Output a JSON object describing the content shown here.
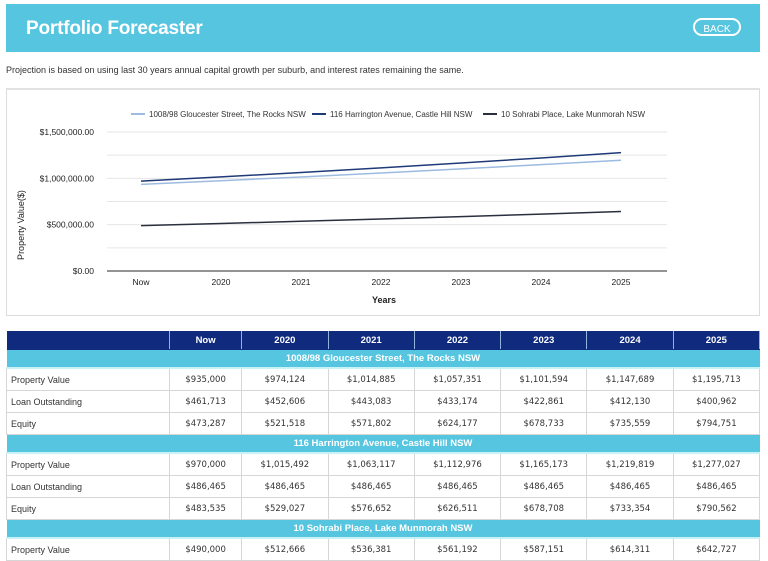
{
  "header": {
    "title": "Portfolio Forecaster",
    "back_label": "BACK"
  },
  "note": "Projection is based on using last 30 years annual capital growth per suburb, and interest rates remaining the same.",
  "colors": {
    "header_bg": "#56c5e0",
    "table_header_bg": "#102a7e",
    "series": [
      "#9dbbe0",
      "#1f3a78",
      "#2a2f3e"
    ]
  },
  "chart_data": {
    "type": "line",
    "title": "",
    "xlabel": "Years",
    "ylabel": "Property Value($)",
    "categories": [
      "Now",
      "2020",
      "2021",
      "2022",
      "2023",
      "2024",
      "2025"
    ],
    "ylim": [
      0,
      1500000
    ],
    "yticks": [
      0,
      500000,
      1000000,
      1500000
    ],
    "ytick_labels": [
      "$0.00",
      "$500,000.00",
      "$1,000,000.00",
      "$1,500,000.00"
    ],
    "grid": true,
    "legend_position": "top",
    "series": [
      {
        "name": "1008/98 Gloucester Street, The Rocks NSW",
        "values": [
          935000,
          974124,
          1014885,
          1057351,
          1101594,
          1147689,
          1195713
        ]
      },
      {
        "name": "116 Harrington Avenue, Castle Hill NSW",
        "values": [
          970000,
          1015492,
          1063117,
          1112976,
          1165173,
          1219819,
          1277027
        ]
      },
      {
        "name": "10 Sohrabi Place, Lake Munmorah NSW",
        "values": [
          490000,
          512666,
          536381,
          561192,
          587151,
          614311,
          642727
        ]
      }
    ]
  },
  "table": {
    "columns": [
      "",
      "Now",
      "2020",
      "2021",
      "2022",
      "2023",
      "2024",
      "2025"
    ],
    "groups": [
      {
        "title": "1008/98 Gloucester Street, The Rocks NSW",
        "rows": [
          {
            "label": "Property Value",
            "values": [
              "$935,000",
              "$974,124",
              "$1,014,885",
              "$1,057,351",
              "$1,101,594",
              "$1,147,689",
              "$1,195,713"
            ]
          },
          {
            "label": "Loan Outstanding",
            "values": [
              "$461,713",
              "$452,606",
              "$443,083",
              "$433,174",
              "$422,861",
              "$412,130",
              "$400,962"
            ]
          },
          {
            "label": "Equity",
            "values": [
              "$473,287",
              "$521,518",
              "$571,802",
              "$624,177",
              "$678,733",
              "$735,559",
              "$794,751"
            ]
          }
        ]
      },
      {
        "title": "116 Harrington Avenue, Castle Hill NSW",
        "rows": [
          {
            "label": "Property Value",
            "values": [
              "$970,000",
              "$1,015,492",
              "$1,063,117",
              "$1,112,976",
              "$1,165,173",
              "$1,219,819",
              "$1,277,027"
            ]
          },
          {
            "label": "Loan Outstanding",
            "values": [
              "$486,465",
              "$486,465",
              "$486,465",
              "$486,465",
              "$486,465",
              "$486,465",
              "$486,465"
            ]
          },
          {
            "label": "Equity",
            "values": [
              "$483,535",
              "$529,027",
              "$576,652",
              "$626,511",
              "$678,708",
              "$733,354",
              "$790,562"
            ]
          }
        ]
      },
      {
        "title": "10 Sohrabi Place, Lake Munmorah NSW",
        "rows": [
          {
            "label": "Property Value",
            "values": [
              "$490,000",
              "$512,666",
              "$536,381",
              "$561,192",
              "$587,151",
              "$614,311",
              "$642,727"
            ]
          }
        ]
      }
    ]
  }
}
